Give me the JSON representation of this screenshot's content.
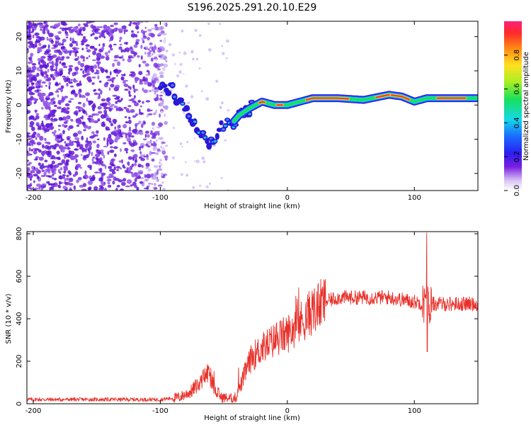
{
  "title": "S196.2025.291.20.10.E29",
  "colors": {
    "axis": "#000000",
    "snr_line": "#e8302a",
    "scatter_purple": "#6a1fd6",
    "scatter_light": "#cbb6f2"
  },
  "chart_data": [
    {
      "name": "spectrogram",
      "type": "heatmap",
      "title": "S196.2025.291.20.10.E29",
      "xlabel": "Height of straight line (km)",
      "ylabel": "Frequency (Hz)",
      "xlim": [
        -205,
        150
      ],
      "ylim": [
        -25,
        24.5
      ],
      "x_ticks": [
        -200,
        -100,
        0,
        100
      ],
      "x_tick_labels": [
        "-200",
        "-100",
        "0",
        "100"
      ],
      "y_ticks": [
        20,
        10,
        0,
        -10,
        -20
      ],
      "y_tick_labels": [
        "20",
        "10",
        "0",
        "-10",
        "-20"
      ],
      "ridge": {
        "x": [
          -100,
          -90,
          -80,
          -72,
          -65,
          -58,
          -52,
          -45,
          -38,
          -30,
          -20,
          -10,
          0,
          10,
          20,
          40,
          60,
          80,
          90,
          100,
          110,
          130,
          150
        ],
        "y": [
          6,
          4,
          -2,
          -6,
          -10,
          -12,
          -6,
          -6,
          -3,
          -1,
          1,
          0,
          0,
          1,
          2,
          2,
          1.5,
          3,
          2.5,
          1,
          2,
          2,
          2
        ]
      },
      "colorbar": {
        "label": "Normalized spectral amplitude",
        "range": [
          0,
          1
        ],
        "ticks": [
          0.0,
          0.2,
          0.4,
          0.6,
          0.8
        ],
        "tick_labels": [
          "0.0",
          "0.2",
          "0.4",
          "0.6",
          "0.8"
        ]
      }
    },
    {
      "name": "snr",
      "type": "line",
      "xlabel": "Height of straight line (km)",
      "ylabel": "SNR (10 * v/v)",
      "xlim": [
        -205,
        150
      ],
      "ylim": [
        0,
        810
      ],
      "x_ticks": [
        -200,
        -100,
        0,
        100
      ],
      "x_tick_labels": [
        "-200",
        "-100",
        "0",
        "100"
      ],
      "y_ticks": [
        0,
        200,
        400,
        600,
        800
      ],
      "y_tick_labels": [
        "0",
        "200",
        "400",
        "600",
        "800"
      ],
      "trend": {
        "x": [
          -205,
          -120,
          -100,
          -85,
          -75,
          -68,
          -62,
          -58,
          -52,
          -45,
          -40,
          -33,
          -28,
          -20,
          -10,
          0,
          10,
          20,
          30,
          40,
          60,
          80,
          100,
          110,
          120,
          150
        ],
        "y": [
          20,
          20,
          20,
          30,
          60,
          110,
          150,
          80,
          30,
          25,
          30,
          150,
          220,
          260,
          300,
          330,
          380,
          440,
          480,
          500,
          500,
          500,
          480,
          470,
          470,
          470
        ]
      },
      "events": [
        {
          "x": 110,
          "peak": 805,
          "trough": 245
        }
      ]
    }
  ]
}
